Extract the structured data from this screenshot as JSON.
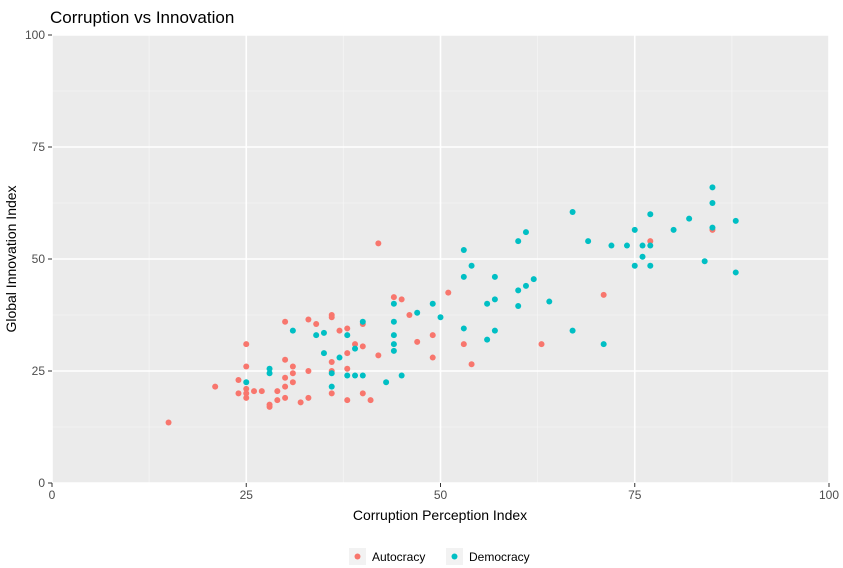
{
  "chart_data": {
    "type": "scatter",
    "title": "Corruption vs Innovation",
    "xlabel": "Corruption Perception Index",
    "ylabel": "Global Innovation Index",
    "xlim": [
      0,
      100
    ],
    "ylim": [
      0,
      100
    ],
    "x_ticks": [
      "0",
      "25",
      "50",
      "75",
      "100"
    ],
    "y_ticks": [
      "0",
      "25",
      "50",
      "75",
      "100"
    ],
    "grid": true,
    "legend_position": "bottom",
    "series": [
      {
        "name": "Autocracy",
        "color": "#F8766D",
        "points": [
          [
            15,
            13.5
          ],
          [
            21,
            21.5
          ],
          [
            24,
            23
          ],
          [
            24,
            20
          ],
          [
            25,
            31
          ],
          [
            25,
            26
          ],
          [
            25,
            21
          ],
          [
            25,
            20
          ],
          [
            25,
            19
          ],
          [
            26,
            20.5
          ],
          [
            27,
            20.5
          ],
          [
            28,
            17.5
          ],
          [
            28,
            17
          ],
          [
            29,
            20.5
          ],
          [
            29,
            18.5
          ],
          [
            30,
            36
          ],
          [
            30,
            27.5
          ],
          [
            30,
            23.5
          ],
          [
            30,
            21.5
          ],
          [
            30,
            19
          ],
          [
            31,
            26
          ],
          [
            31,
            24.5
          ],
          [
            31,
            22.5
          ],
          [
            32,
            18
          ],
          [
            33,
            36.5
          ],
          [
            33,
            25
          ],
          [
            33,
            19
          ],
          [
            34,
            35.5
          ],
          [
            36,
            37.5
          ],
          [
            36,
            37
          ],
          [
            36,
            27
          ],
          [
            36,
            25
          ],
          [
            36,
            20
          ],
          [
            37,
            34
          ],
          [
            38,
            34.5
          ],
          [
            38,
            29
          ],
          [
            38,
            25.5
          ],
          [
            38,
            18.5
          ],
          [
            39,
            31
          ],
          [
            40,
            35.5
          ],
          [
            40,
            30.5
          ],
          [
            40,
            20
          ],
          [
            41,
            18.5
          ],
          [
            42,
            53.5
          ],
          [
            42,
            28.5
          ],
          [
            44,
            41.5
          ],
          [
            45,
            41
          ],
          [
            46,
            37.5
          ],
          [
            47,
            31.5
          ],
          [
            49,
            33
          ],
          [
            49,
            28
          ],
          [
            51,
            42.5
          ],
          [
            53,
            31
          ],
          [
            54,
            26.5
          ],
          [
            63,
            31
          ],
          [
            71,
            42
          ],
          [
            77,
            54
          ],
          [
            85,
            56.5
          ]
        ]
      },
      {
        "name": "Democracy",
        "color": "#00BFC4",
        "points": [
          [
            25,
            22.5
          ],
          [
            28,
            25.5
          ],
          [
            28,
            24.5
          ],
          [
            31,
            34
          ],
          [
            34,
            33
          ],
          [
            35,
            33.5
          ],
          [
            35,
            29
          ],
          [
            36,
            24.5
          ],
          [
            36,
            21.5
          ],
          [
            37,
            28
          ],
          [
            38,
            24
          ],
          [
            38,
            33
          ],
          [
            39,
            30
          ],
          [
            39,
            24
          ],
          [
            40,
            36
          ],
          [
            40,
            24
          ],
          [
            43,
            22.5
          ],
          [
            44,
            40
          ],
          [
            44,
            36
          ],
          [
            44,
            33
          ],
          [
            44,
            31
          ],
          [
            44,
            29.5
          ],
          [
            45,
            24
          ],
          [
            47,
            38
          ],
          [
            49,
            40
          ],
          [
            50,
            37
          ],
          [
            53,
            52
          ],
          [
            53,
            46
          ],
          [
            53,
            34.5
          ],
          [
            54,
            48.5
          ],
          [
            56,
            40
          ],
          [
            56,
            32
          ],
          [
            57,
            46
          ],
          [
            57,
            41
          ],
          [
            57,
            34
          ],
          [
            60,
            54
          ],
          [
            60,
            43
          ],
          [
            60,
            39.5
          ],
          [
            61,
            56
          ],
          [
            61,
            44
          ],
          [
            62,
            45.5
          ],
          [
            64,
            40.5
          ],
          [
            67,
            60.5
          ],
          [
            67,
            34
          ],
          [
            69,
            54
          ],
          [
            71,
            31
          ],
          [
            72,
            53
          ],
          [
            74,
            53
          ],
          [
            75,
            56.5
          ],
          [
            75,
            48.5
          ],
          [
            76,
            53
          ],
          [
            76,
            50.5
          ],
          [
            77,
            60
          ],
          [
            77,
            53
          ],
          [
            77,
            48.5
          ],
          [
            80,
            56.5
          ],
          [
            82,
            59
          ],
          [
            84,
            49.5
          ],
          [
            85,
            66
          ],
          [
            85,
            62.5
          ],
          [
            85,
            57
          ],
          [
            88,
            58.5
          ],
          [
            88,
            47
          ]
        ]
      }
    ]
  }
}
